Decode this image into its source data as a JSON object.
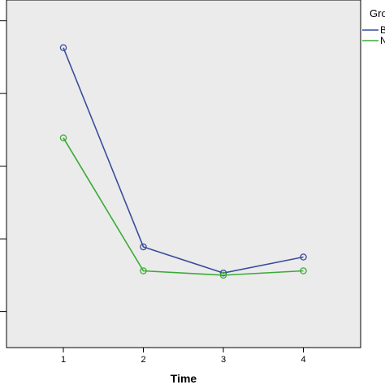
{
  "chart_data": {
    "type": "line",
    "xlabel": "Time",
    "categories": [
      "1",
      "2",
      "3",
      "4"
    ],
    "ylim": [
      0,
      4
    ],
    "y_major_ticks": [
      0.25,
      1.25,
      2.25,
      3.25,
      4.25
    ],
    "grid": false,
    "legend": {
      "position": "top-right",
      "title": "Gro",
      "entries": [
        "B",
        "N"
      ]
    },
    "series": [
      {
        "name": "B",
        "color": "#3a4c9c",
        "values": [
          3.88,
          1.14,
          0.78,
          1.0
        ]
      },
      {
        "name": "N",
        "color": "#3aaa35",
        "values": [
          2.64,
          0.81,
          0.75,
          0.81
        ]
      }
    ]
  },
  "colors": {
    "plot_background": "#ebebeb",
    "axis": "#000000"
  }
}
